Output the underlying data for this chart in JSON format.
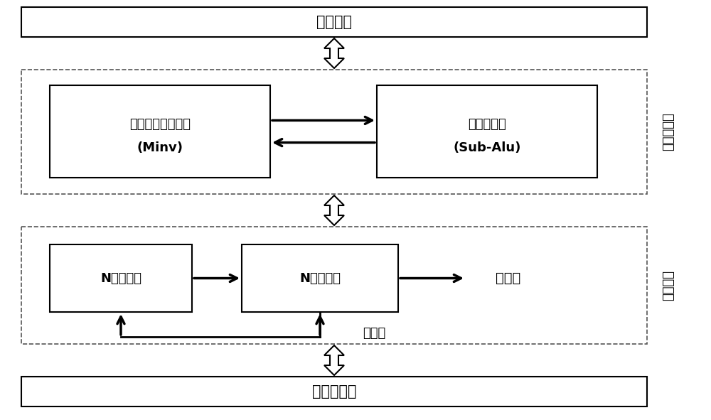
{
  "bg_color": "#ffffff",
  "bus_interface_label": "总线接口",
  "memory_interface_label": "存储器接口",
  "control_layer_label": "运算控制层",
  "data_path_label": "数据通路",
  "minv_label1": "模逆运算控制模块",
  "minv_label2": "(Minv)",
  "subalu_label1": "子运算模块",
  "subalu_label2": "(Sub-Alu)",
  "nreg_label": "N位寄存器",
  "nadd_label": "N位加法器",
  "write_label": "写数据",
  "read_label": "读数据"
}
